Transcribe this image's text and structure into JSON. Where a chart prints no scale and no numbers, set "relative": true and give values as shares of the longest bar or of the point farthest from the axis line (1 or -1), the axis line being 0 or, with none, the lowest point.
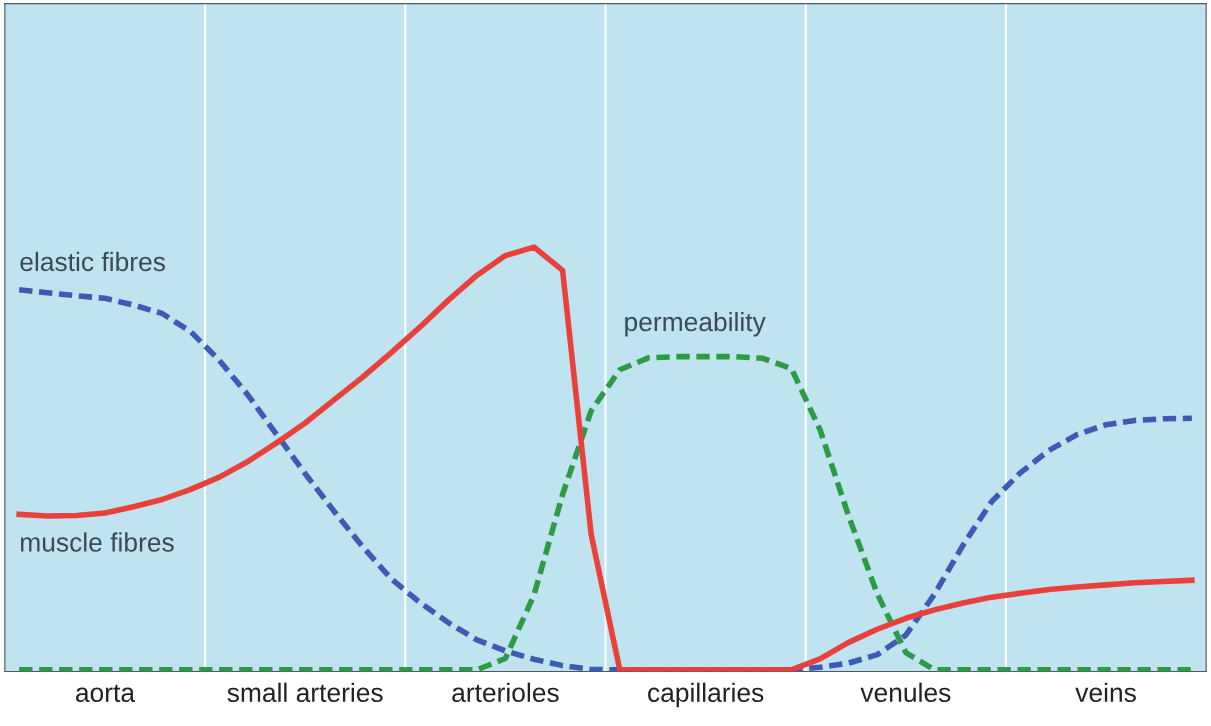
{
  "chart_data": {
    "type": "line",
    "relative": true,
    "categories": [
      null,
      null,
      null,
      "aorta",
      null,
      null,
      null,
      null,
      null,
      null,
      "small arteries",
      null,
      null,
      null,
      null,
      null,
      null,
      "arterioles",
      null,
      null,
      null,
      null,
      null,
      null,
      "capillaries",
      null,
      null,
      null,
      null,
      null,
      null,
      "venules",
      null,
      null,
      null,
      null,
      null,
      null,
      "veins",
      null,
      null,
      null
    ],
    "legend": false,
    "grid": false,
    "series": [
      {
        "name": "elastic fibres",
        "color": "#3b5bb5",
        "line_style": "dashed",
        "values": [
          0.899,
          0.892,
          0.885,
          0.879,
          0.863,
          0.843,
          0.8,
          0.732,
          0.65,
          0.557,
          0.464,
          0.376,
          0.292,
          0.216,
          0.16,
          0.112,
          0.071,
          0.045,
          0.025,
          0.01,
          0.001,
          0,
          0,
          0,
          0,
          0,
          0,
          0,
          0.006,
          0.016,
          0.036,
          0.082,
          0.179,
          0.295,
          0.398,
          0.466,
          0.519,
          0.557,
          0.58,
          0.59,
          0.594,
          0.595
        ]
      },
      {
        "name": "muscle fibres",
        "color": "#e8413c",
        "line_style": "solid",
        "values": [
          0.368,
          0.364,
          0.365,
          0.371,
          0.386,
          0.403,
          0.427,
          0.456,
          0.493,
          0.537,
          0.584,
          0.638,
          0.692,
          0.75,
          0.81,
          0.874,
          0.933,
          0.98,
          1.0,
          0.945,
          0.32,
          0,
          0,
          0,
          0,
          0,
          0,
          0,
          0.026,
          0.065,
          0.096,
          0.122,
          0.142,
          0.158,
          0.172,
          0.181,
          0.19,
          0.196,
          0.201,
          0.206,
          0.209,
          0.212
        ]
      },
      {
        "name": "permeability",
        "color": "#2e9a48",
        "line_style": "dashed",
        "values": [
          0,
          0,
          0,
          0,
          0,
          0,
          0,
          0,
          0,
          0,
          0,
          0,
          0,
          0,
          0,
          0,
          0,
          0.027,
          0.177,
          0.415,
          0.613,
          0.71,
          0.738,
          0.741,
          0.741,
          0.741,
          0.737,
          0.713,
          0.568,
          0.364,
          0.18,
          0.041,
          0,
          0,
          0,
          0,
          0,
          0,
          0,
          0,
          0,
          0
        ]
      }
    ]
  }
}
